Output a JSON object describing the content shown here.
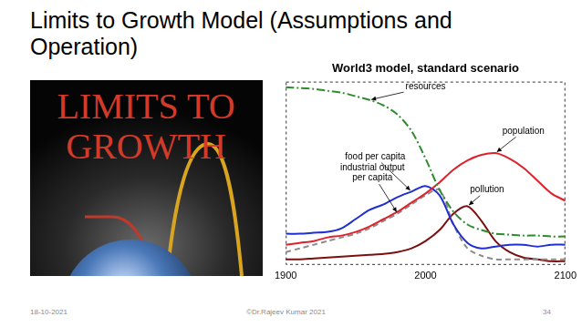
{
  "slide": {
    "title_lines": [
      "Limits to Growth Model (Assumptions and",
      "Operation)"
    ],
    "cover_lines": [
      "LIMITS TO",
      "GROWTH"
    ],
    "footer": {
      "date": "18-10-2021",
      "author": "©Dr.Rajeev Kumar 2021",
      "page": 34
    }
  },
  "chart_data": {
    "type": "line",
    "title": "World3 model, standard scenario",
    "x": [
      1900,
      1910,
      1920,
      1930,
      1940,
      1950,
      1960,
      1970,
      1980,
      1990,
      2000,
      2010,
      2020,
      2030,
      2040,
      2050,
      2060,
      2070,
      2080,
      2090,
      2100
    ],
    "xlim": [
      1900,
      2100
    ],
    "xticks": [
      1900,
      2000,
      2100
    ],
    "ylim": [
      0,
      100
    ],
    "tick_labels": "x",
    "grid": false,
    "series": [
      {
        "name": "resources",
        "color": "#2e8b2e",
        "line_style": "dash-dot",
        "values": [
          97,
          96.5,
          96,
          95,
          94,
          92,
          90,
          87,
          82,
          73,
          58,
          41,
          29,
          22,
          19,
          17,
          16.5,
          16,
          16,
          15.5,
          15.5
        ]
      },
      {
        "name": "population",
        "color": "#e0202a",
        "line_style": "solid",
        "values": [
          11,
          12,
          13,
          15,
          16,
          18,
          21,
          25,
          29,
          34,
          39,
          45,
          52,
          57,
          60,
          61,
          58,
          53,
          46,
          39,
          35
        ]
      },
      {
        "name": "food per capita",
        "color": "#1f2fd0",
        "line_style": "solid",
        "values": [
          17,
          17,
          17.5,
          18,
          20,
          25,
          30,
          33,
          37,
          40,
          43,
          38,
          22,
          12,
          9,
          10,
          11,
          11,
          10,
          11,
          11
        ]
      },
      {
        "name": "industrial output per capita",
        "color": "#8c8c8c",
        "line_style": "dashed",
        "values": [
          7,
          9,
          11,
          13,
          15,
          17,
          20,
          24,
          28,
          33,
          38,
          41,
          22,
          9,
          5,
          3,
          3,
          3,
          3,
          3,
          3
        ]
      },
      {
        "name": "pollution",
        "color": "#7a1010",
        "line_style": "solid",
        "values": [
          3,
          3,
          3.5,
          4,
          4.5,
          5,
          5.5,
          6,
          7,
          9,
          13,
          19,
          28,
          32,
          24,
          13,
          7,
          4,
          3,
          2,
          2
        ]
      }
    ]
  }
}
